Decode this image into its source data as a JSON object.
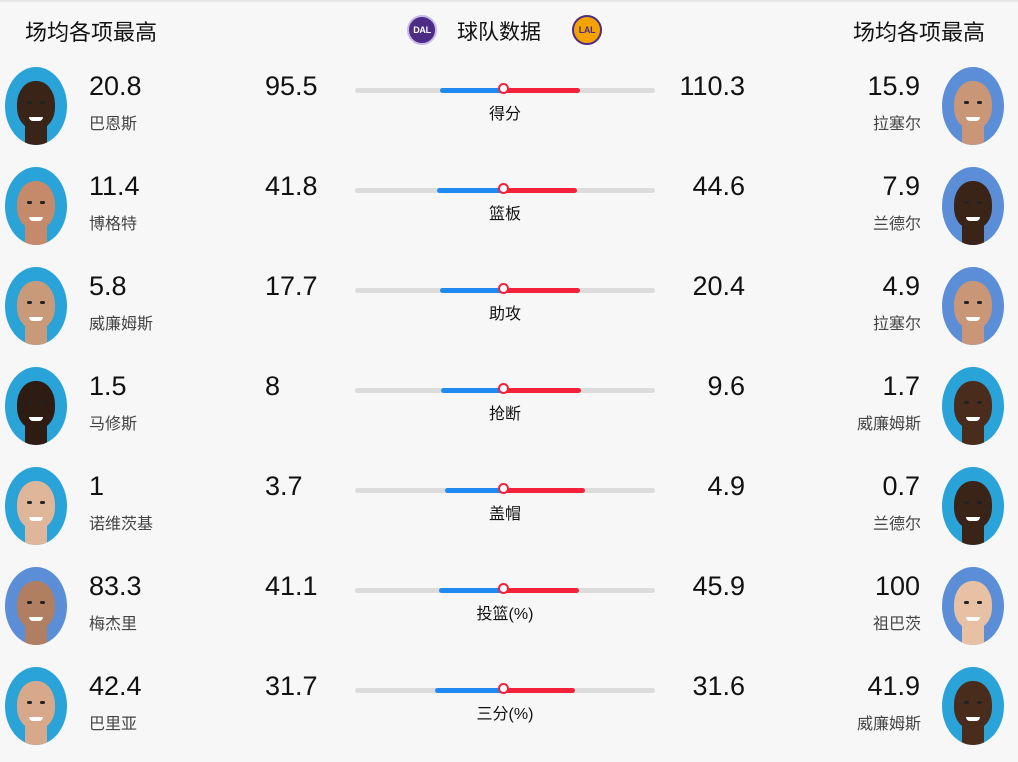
{
  "header": {
    "left_title": "场均各项最高",
    "center_title": "球队数据",
    "right_title": "场均各项最高",
    "home_team_abbr": "DAL",
    "away_team_abbr": "LAL"
  },
  "colors": {
    "home_bar": "#1f8bf2",
    "away_bar": "#f4213a",
    "track": "#dcdcdc"
  },
  "rows": [
    {
      "stat_label": "得分",
      "home_team_value": "95.5",
      "away_team_value": "110.3",
      "home_share": 0.464,
      "away_share": 0.536,
      "home_leader": {
        "value": "20.8",
        "name": "巴恩斯",
        "avatar_icon": "player-avatar-icon"
      },
      "away_leader": {
        "value": "15.9",
        "name": "拉塞尔",
        "avatar_icon": "player-avatar-icon"
      }
    },
    {
      "stat_label": "篮板",
      "home_team_value": "41.8",
      "away_team_value": "44.6",
      "home_share": 0.484,
      "away_share": 0.516,
      "home_leader": {
        "value": "11.4",
        "name": "博格特",
        "avatar_icon": "player-avatar-icon"
      },
      "away_leader": {
        "value": "7.9",
        "name": "兰德尔",
        "avatar_icon": "player-avatar-icon"
      }
    },
    {
      "stat_label": "助攻",
      "home_team_value": "17.7",
      "away_team_value": "20.4",
      "home_share": 0.465,
      "away_share": 0.535,
      "home_leader": {
        "value": "5.8",
        "name": "威廉姆斯",
        "avatar_icon": "player-avatar-icon"
      },
      "away_leader": {
        "value": "4.9",
        "name": "拉塞尔",
        "avatar_icon": "player-avatar-icon"
      }
    },
    {
      "stat_label": "抢断",
      "home_team_value": "8",
      "away_team_value": "9.6",
      "home_share": 0.455,
      "away_share": 0.545,
      "home_leader": {
        "value": "1.5",
        "name": "马修斯",
        "avatar_icon": "player-avatar-icon"
      },
      "away_leader": {
        "value": "1.7",
        "name": "威廉姆斯",
        "avatar_icon": "player-avatar-icon"
      }
    },
    {
      "stat_label": "盖帽",
      "home_team_value": "3.7",
      "away_team_value": "4.9",
      "home_share": 0.43,
      "away_share": 0.57,
      "home_leader": {
        "value": "1",
        "name": "诺维茨基",
        "avatar_icon": "player-avatar-icon"
      },
      "away_leader": {
        "value": "0.7",
        "name": "兰德尔",
        "avatar_icon": "player-avatar-icon"
      }
    },
    {
      "stat_label": "投篮(%)",
      "home_team_value": "41.1",
      "away_team_value": "45.9",
      "home_share": 0.472,
      "away_share": 0.528,
      "home_leader": {
        "value": "83.3",
        "name": "梅杰里",
        "avatar_icon": "player-avatar-icon"
      },
      "away_leader": {
        "value": "100",
        "name": "祖巴茨",
        "avatar_icon": "player-avatar-icon"
      }
    },
    {
      "stat_label": "三分(%)",
      "home_team_value": "31.7",
      "away_team_value": "31.6",
      "home_share": 0.5,
      "away_share": 0.5,
      "home_leader": {
        "value": "42.4",
        "name": "巴里亚",
        "avatar_icon": "player-avatar-icon"
      },
      "away_leader": {
        "value": "41.9",
        "name": "威廉姆斯",
        "avatar_icon": "player-avatar-icon"
      }
    }
  ]
}
